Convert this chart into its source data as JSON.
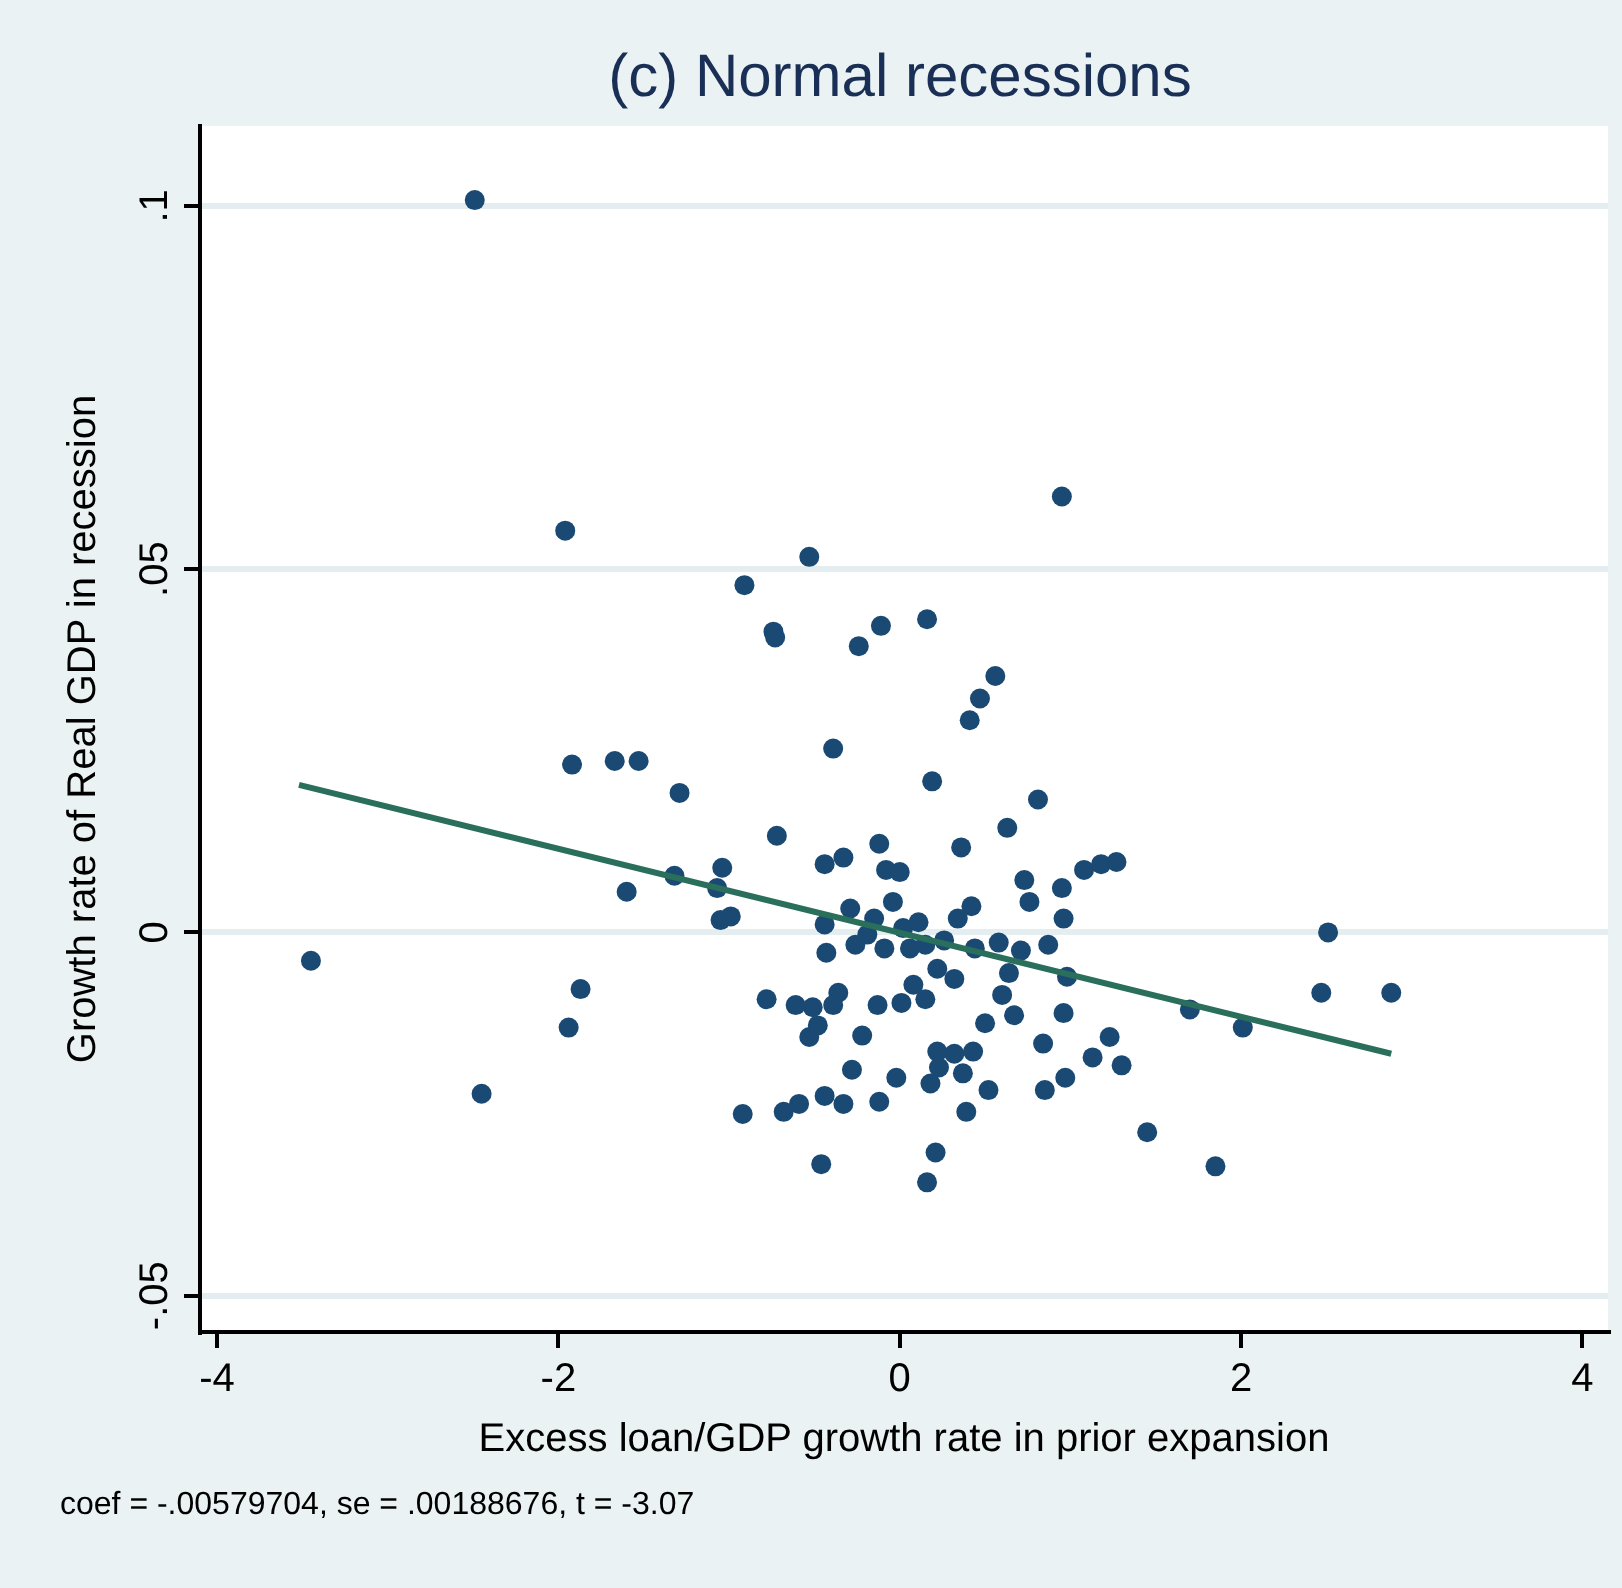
{
  "chart_data": {
    "type": "scatter",
    "title": "(c) Normal recessions",
    "xlabel": "Excess loan/GDP growth rate in prior expansion",
    "ylabel": "Growth rate of Real GDP in recession",
    "annotations": [
      "coef = -.00579704, se = .00188676, t = -3.07"
    ],
    "xlim": [
      -4.1,
      4.15
    ],
    "xticks": [
      -4,
      -2,
      0,
      2,
      4
    ],
    "ylim": [
      -0.055,
      0.111
    ],
    "yticks": [
      {
        "value": -0.05,
        "label": "-.05"
      },
      0,
      {
        "value": 0.05,
        "label": ".05"
      },
      {
        "value": 0.1,
        "label": ".1"
      }
    ],
    "grid": "y",
    "legend": false,
    "marker": "circle",
    "series": [
      {
        "type": "scatter",
        "color": "#1a4a73",
        "x": [
          -2.49,
          -3.45,
          -2.45,
          -1.96,
          -1.92,
          -1.87,
          -1.94,
          -1.67,
          -1.53,
          -1.6,
          -1.29,
          -1.32,
          -1.04,
          -1.07,
          -1.05,
          -0.99,
          -0.91,
          -0.74,
          -0.73,
          -0.72,
          -0.53,
          -0.11,
          -0.24,
          0.16,
          -0.39,
          0.95,
          0.56,
          0.47,
          0.41,
          0.19,
          0.81,
          0.63,
          0.36,
          -0.12,
          -0.08,
          -0.44,
          -0.33,
          1.18,
          1.27,
          1.08,
          0.73,
          0.76,
          -0.29,
          -0.15,
          -0.04,
          0.02,
          -0.26,
          -0.19,
          -0.09,
          0.06,
          0.15,
          0.34,
          0.42,
          0.44,
          0.32,
          0.22,
          0.08,
          0.01,
          -0.13,
          0.15,
          0.26,
          0.58,
          0.71,
          0.87,
          0.95,
          0.96,
          0.98,
          0.64,
          0.6,
          0.67,
          0.5,
          0.84,
          0.96,
          -0.44,
          -0.43,
          -0.36,
          -0.39,
          -0.51,
          -0.78,
          -0.61,
          -0.53,
          -0.48,
          -0.22,
          -0.28,
          -0.33,
          -0.59,
          -0.44,
          -0.92,
          -0.46,
          -0.12,
          -0.02,
          0.22,
          0.23,
          0.32,
          0.43,
          0.37,
          0.52,
          0.39,
          0.18,
          0.21,
          0.16,
          0.85,
          0.97,
          1.13,
          1.23,
          1.3,
          1.45,
          1.85,
          1.7,
          2.01,
          2.47,
          2.51,
          2.88,
          -0.68,
          0.11,
          0
        ],
        "values": [
          0.1008,
          -0.0039,
          -0.0222,
          0.0553,
          0.0231,
          -0.0078,
          -0.0131,
          0.0236,
          0.0236,
          0.0056,
          0.0192,
          0.0078,
          0.0089,
          0.0061,
          0.0017,
          0.0022,
          0.0478,
          0.0414,
          0.0406,
          0.0133,
          0.0517,
          0.0422,
          0.0394,
          0.0431,
          0.0253,
          0.06,
          0.0353,
          0.0322,
          0.0292,
          0.0208,
          0.0183,
          0.0144,
          0.0117,
          0.0122,
          0.0086,
          0.0094,
          0.0103,
          0.0094,
          0.0097,
          0.0086,
          0.0072,
          0.0042,
          0.0033,
          0.0019,
          0.0042,
          0.0006,
          -0.0017,
          -0.0003,
          -0.0022,
          -0.0022,
          -0.0017,
          0.0019,
          0.0036,
          -0.0022,
          -0.0064,
          -0.005,
          -0.0072,
          -0.0097,
          -0.01,
          -0.0092,
          -0.0011,
          -0.0014,
          -0.0025,
          -0.0017,
          0.0061,
          0.0019,
          -0.0061,
          -0.0056,
          -0.0086,
          -0.0114,
          -0.0125,
          -0.0153,
          -0.0111,
          0.0011,
          -0.0028,
          -0.0083,
          -0.01,
          -0.0103,
          -0.0092,
          -0.01,
          -0.0144,
          -0.0128,
          -0.0142,
          -0.0189,
          -0.0236,
          -0.0236,
          -0.0225,
          -0.025,
          -0.0319,
          -0.0233,
          -0.02,
          -0.0164,
          -0.0186,
          -0.0167,
          -0.0164,
          -0.0194,
          -0.0217,
          -0.0247,
          -0.0208,
          -0.0303,
          -0.0344,
          -0.0217,
          -0.02,
          -0.0172,
          -0.0144,
          -0.0183,
          -0.0275,
          -0.0322,
          -0.0106,
          -0.0131,
          -0.0083,
          0,
          -0.0083,
          -0.0247,
          0.0014,
          0.0083
        ]
      },
      {
        "type": "line",
        "color": "#2a6e5c",
        "marker": "none",
        "x": [
          -3.52,
          2.88
        ],
        "values": [
          0.0203,
          -0.0167
        ]
      }
    ]
  }
}
